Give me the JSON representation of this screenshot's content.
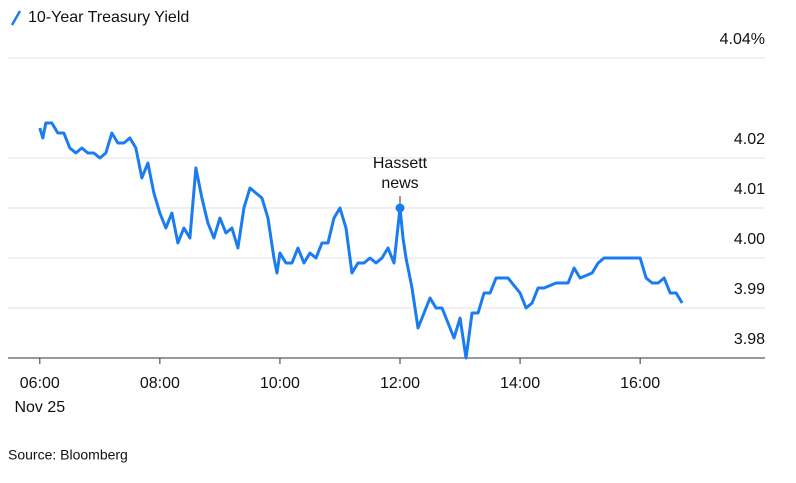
{
  "chart_data": {
    "type": "line",
    "title": "10-Year Treasury Yield",
    "source": "Source: Bloomberg",
    "color": "#1a7cf0",
    "grid": true,
    "x_sublabel": "Nov 25",
    "xlim": [
      5.47,
      18.08
    ],
    "xticks": [
      {
        "value": 6,
        "label": "06:00"
      },
      {
        "value": 8,
        "label": "08:00"
      },
      {
        "value": 10,
        "label": "10:00"
      },
      {
        "value": 12,
        "label": "12:00"
      },
      {
        "value": 14,
        "label": "14:00"
      },
      {
        "value": 16,
        "label": "16:00"
      }
    ],
    "ylim": [
      3.98,
      4.04
    ],
    "yticks": [
      3.98,
      3.99,
      {
        "value": 4,
        "label": "4.00"
      },
      4.01,
      4.02,
      {
        "value": 4.04,
        "label": "4.04%"
      }
    ],
    "x": [
      6.0,
      6.05,
      6.1,
      6.2,
      6.3,
      6.4,
      6.5,
      6.6,
      6.7,
      6.8,
      6.9,
      7.0,
      7.1,
      7.2,
      7.3,
      7.4,
      7.5,
      7.6,
      7.7,
      7.8,
      7.9,
      8.0,
      8.1,
      8.2,
      8.3,
      8.4,
      8.5,
      8.6,
      8.7,
      8.8,
      8.9,
      9.0,
      9.1,
      9.2,
      9.3,
      9.4,
      9.5,
      9.6,
      9.7,
      9.8,
      9.9,
      9.95,
      10.0,
      10.1,
      10.2,
      10.3,
      10.4,
      10.5,
      10.6,
      10.7,
      10.8,
      10.9,
      11.0,
      11.1,
      11.2,
      11.3,
      11.4,
      11.5,
      11.6,
      11.7,
      11.8,
      11.9,
      12.0,
      12.05,
      12.1,
      12.2,
      12.3,
      12.4,
      12.5,
      12.6,
      12.7,
      12.8,
      12.9,
      13.0,
      13.1,
      13.2,
      13.3,
      13.4,
      13.5,
      13.6,
      13.8,
      14.0,
      14.1,
      14.2,
      14.3,
      14.4,
      14.6,
      14.8,
      14.9,
      15.0,
      15.2,
      15.3,
      15.4,
      15.6,
      16.0,
      16.1,
      16.2,
      16.3,
      16.4,
      16.5,
      16.6,
      16.7
    ],
    "values": [
      4.026,
      4.024,
      4.027,
      4.027,
      4.025,
      4.025,
      4.022,
      4.021,
      4.022,
      4.021,
      4.021,
      4.02,
      4.021,
      4.025,
      4.023,
      4.023,
      4.024,
      4.022,
      4.016,
      4.019,
      4.013,
      4.009,
      4.006,
      4.009,
      4.003,
      4.006,
      4.004,
      4.018,
      4.012,
      4.007,
      4.004,
      4.008,
      4.005,
      4.006,
      4.002,
      4.01,
      4.014,
      4.013,
      4.012,
      4.008,
      4.0,
      3.997,
      4.001,
      3.999,
      3.999,
      4.002,
      3.999,
      4.001,
      4.0,
      4.003,
      4.003,
      4.008,
      4.01,
      4.006,
      3.997,
      3.999,
      3.999,
      4.0,
      3.999,
      4.0,
      4.002,
      3.999,
      4.01,
      4.004,
      4.0,
      3.994,
      3.986,
      3.989,
      3.992,
      3.99,
      3.99,
      3.987,
      3.984,
      3.988,
      3.98,
      3.989,
      3.989,
      3.993,
      3.993,
      3.996,
      3.996,
      3.993,
      3.99,
      3.991,
      3.994,
      3.994,
      3.995,
      3.995,
      3.998,
      3.996,
      3.997,
      3.999,
      4.0,
      4.0,
      4.0,
      3.996,
      3.995,
      3.995,
      3.996,
      3.993,
      3.993,
      3.991
    ],
    "annotation": {
      "lines": [
        "Hassett",
        "news"
      ],
      "x": 12,
      "y": 4.01
    }
  }
}
